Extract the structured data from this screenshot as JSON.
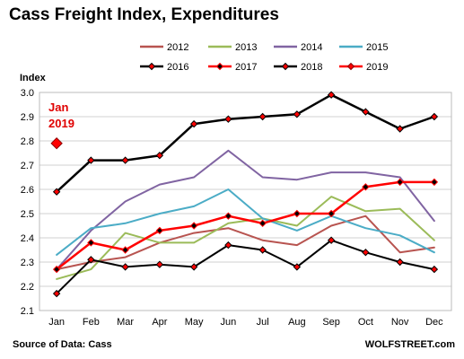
{
  "chart_data": {
    "type": "line",
    "title": "Cass Freight Index, Expenditures",
    "ylabel": "Index",
    "xlabel": "",
    "ylim": [
      2.1,
      3.0
    ],
    "yticks": [
      "2.1",
      "2.2",
      "2.3",
      "2.4",
      "2.5",
      "2.6",
      "2.7",
      "2.8",
      "2.9",
      "3.0"
    ],
    "categories": [
      "Jan",
      "Feb",
      "Mar",
      "Apr",
      "May",
      "Jun",
      "Jul",
      "Aug",
      "Sep",
      "Oct",
      "Nov",
      "Dec"
    ],
    "grid": true,
    "legend": "top",
    "series": [
      {
        "name": "2012",
        "color": "#b85450",
        "marker": "none",
        "values": [
          2.27,
          2.3,
          2.32,
          2.38,
          2.42,
          2.44,
          2.39,
          2.37,
          2.45,
          2.49,
          2.34,
          2.36
        ]
      },
      {
        "name": "2013",
        "color": "#9bbb59",
        "marker": "none",
        "values": [
          2.23,
          2.27,
          2.42,
          2.38,
          2.38,
          2.46,
          2.48,
          2.45,
          2.57,
          2.51,
          2.52,
          2.39
        ]
      },
      {
        "name": "2014",
        "color": "#8064a2",
        "marker": "none",
        "values": [
          2.27,
          2.43,
          2.55,
          2.62,
          2.65,
          2.76,
          2.65,
          2.64,
          2.67,
          2.67,
          2.65,
          2.47
        ]
      },
      {
        "name": "2015",
        "color": "#4bacc6",
        "marker": "none",
        "values": [
          2.33,
          2.44,
          2.46,
          2.5,
          2.53,
          2.6,
          2.48,
          2.43,
          2.49,
          2.44,
          2.41,
          2.34
        ]
      },
      {
        "name": "2016",
        "color": "#000000",
        "marker": "diamond-red",
        "width": 2,
        "values": [
          2.17,
          2.31,
          2.28,
          2.29,
          2.28,
          2.37,
          2.35,
          2.28,
          2.39,
          2.34,
          2.3,
          2.27
        ]
      },
      {
        "name": "2017",
        "color": "#ff0000",
        "marker": "diamond-black",
        "width": 2.5,
        "values": [
          2.27,
          2.38,
          2.35,
          2.43,
          2.45,
          2.49,
          2.46,
          2.5,
          2.5,
          2.61,
          2.63,
          2.63
        ]
      },
      {
        "name": "2018",
        "color": "#000000",
        "marker": "diamond-red",
        "width": 2.5,
        "values": [
          2.59,
          2.72,
          2.72,
          2.74,
          2.87,
          2.89,
          2.9,
          2.91,
          2.99,
          2.92,
          2.85,
          2.9
        ]
      },
      {
        "name": "2019",
        "color": "#ff0000",
        "marker": "diamond-red-big",
        "width": 2.5,
        "values": [
          2.79,
          null,
          null,
          null,
          null,
          null,
          null,
          null,
          null,
          null,
          null,
          null
        ]
      }
    ],
    "annotation": {
      "line1": "Jan",
      "line2": "2019",
      "x": "Jan",
      "y": 2.79
    }
  },
  "footer": {
    "source": "Source of Data: Cass",
    "credit": "WOLFSTREET.com"
  }
}
